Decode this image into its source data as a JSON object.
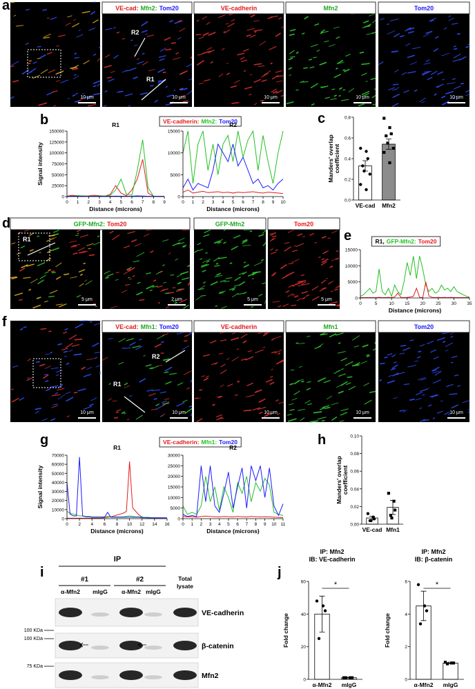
{
  "panel_labels": [
    "a",
    "b",
    "c",
    "d",
    "e",
    "f",
    "g",
    "h",
    "i",
    "j"
  ],
  "row_a": {
    "merge_header": [
      {
        "text": "VE-cad:",
        "color": "#e41a1c"
      },
      {
        "text": "Mfn2:",
        "color": "#1fa81f"
      },
      {
        "text": "Tom20",
        "color": "#1a1aff"
      }
    ],
    "headers": [
      {
        "text": "VE-cadherin",
        "color": "#e41a1c"
      },
      {
        "text": "Mfn2",
        "color": "#1fa81f"
      },
      {
        "text": "Tom20",
        "color": "#1a1aff"
      }
    ],
    "scales": [
      "10 μm",
      "10 μm",
      "10 μm",
      "10 μm",
      "10 μm"
    ],
    "regions": [
      "R2",
      "R1"
    ]
  },
  "row_d": {
    "merge_header": [
      {
        "text": "GFP-Mfn2:",
        "color": "#1fa81f"
      },
      {
        "text": "Tom20",
        "color": "#e41a1c"
      }
    ],
    "headers": [
      {
        "text": "GFP-Mfn2",
        "color": "#1fa81f"
      },
      {
        "text": "Tom20",
        "color": "#e41a1c"
      }
    ],
    "scales": [
      "5 μm",
      "2 μm",
      "5 μm",
      "5 μm"
    ],
    "regions": [
      "R1"
    ]
  },
  "row_f": {
    "merge_header": [
      {
        "text": "VE-cad:",
        "color": "#e41a1c"
      },
      {
        "text": "Mfn1:",
        "color": "#1fa81f"
      },
      {
        "text": "Tom20",
        "color": "#1a1aff"
      }
    ],
    "headers": [
      {
        "text": "VE-cadherin",
        "color": "#e41a1c"
      },
      {
        "text": "Mfn1",
        "color": "#1fa81f"
      },
      {
        "text": "Tom20",
        "color": "#1a1aff"
      }
    ],
    "scales": [
      "10 μm",
      "10 μm",
      "10 μm",
      "10 μm",
      "10 μm"
    ],
    "regions": [
      "R2",
      "R1"
    ]
  },
  "blot": {
    "ip": "IP",
    "groups": [
      "#1",
      "#2"
    ],
    "lanes": [
      "α-Mfn2",
      "mIgG",
      "α-Mfn2",
      "mIgG"
    ],
    "total": [
      "Total",
      "lysate"
    ],
    "bands": [
      "VE-cadherin",
      "β-catenin",
      "Mfn2"
    ],
    "markers": [
      "100 KDa",
      "100 KDa",
      "75 KDa"
    ]
  },
  "chart_data": [
    {
      "type": "line",
      "title": "R1",
      "xlabel": "Distance (microns)",
      "ylabel": [
        "Signal intensity"
      ],
      "x": [
        0,
        0.5,
        1,
        1.5,
        2,
        2.5,
        3,
        3.5,
        4,
        4.5,
        5,
        5.5,
        6,
        6.5,
        7,
        7.5,
        8,
        8.5,
        9
      ],
      "xlim": [
        0,
        9
      ],
      "xticks": [
        0,
        1,
        2,
        3,
        4,
        5,
        6,
        7,
        8,
        9
      ],
      "ylim": [
        0,
        150000
      ],
      "yticks": [
        0,
        25000,
        50000,
        75000,
        100000,
        125000,
        150000
      ],
      "series": [
        {
          "name": "VE-cadherin:",
          "color": "#e41a1c",
          "values": [
            1000,
            3000,
            2000,
            1000,
            1500,
            3000,
            2000,
            1000,
            5000,
            25000,
            8000,
            2000,
            15000,
            40000,
            85000,
            8000,
            1000,
            500,
            500
          ]
        },
        {
          "name": "Mfn2:",
          "color": "#22c022",
          "values": [
            500,
            1000,
            2000,
            1500,
            1000,
            1000,
            1500,
            1000,
            3000,
            15000,
            40000,
            5000,
            3000,
            60000,
            130000,
            20000,
            1000,
            500,
            500
          ]
        },
        {
          "name": "Tom20",
          "color": "#1a1aff",
          "values": [
            500,
            800,
            600,
            700,
            500,
            600,
            800,
            500,
            700,
            1000,
            800,
            600,
            700,
            1500,
            1200,
            600,
            500,
            400,
            400
          ]
        }
      ]
    },
    {
      "type": "line",
      "title": "R2",
      "xlabel": "Distance (microns)",
      "x": [
        0,
        0.5,
        1,
        1.5,
        2,
        2.5,
        3,
        3.5,
        4,
        4.5,
        5,
        5.5,
        6,
        6.5,
        7,
        7.5,
        8,
        8.5,
        9,
        9.5,
        10
      ],
      "xlim": [
        0,
        10
      ],
      "xticks": [
        0,
        1,
        2,
        3,
        4,
        5,
        6,
        7,
        8,
        9,
        10
      ],
      "ylim": [
        0,
        15000
      ],
      "yticks": [
        0,
        5000,
        10000,
        15000
      ],
      "series": [
        {
          "color": "#22c022",
          "values": [
            10000,
            15000,
            3000,
            12000,
            15000,
            6000,
            12000,
            5000,
            12000,
            14000,
            8000,
            15000,
            9000,
            13000,
            15000,
            6000,
            14000,
            8000,
            3000,
            10000,
            15000
          ]
        },
        {
          "color": "#1a1aff",
          "values": [
            2000,
            4000,
            1500,
            3000,
            2500,
            2000,
            6000,
            12000,
            10000,
            8000,
            12000,
            7000,
            9000,
            6000,
            3000,
            4000,
            2000,
            2500,
            1500,
            3000,
            4000
          ]
        },
        {
          "color": "#e41a1c",
          "values": [
            1000,
            1500,
            800,
            1000,
            1200,
            900,
            1000,
            1100,
            900,
            1000,
            800,
            1000,
            900,
            1000,
            1100,
            900,
            800,
            1000,
            900,
            800,
            700
          ]
        }
      ]
    },
    {
      "type": "bar",
      "ylabel": [
        "Manders' overlap",
        "coefficient"
      ],
      "categories": [
        "VE-cad",
        "Mfn2"
      ],
      "values": [
        0.33,
        0.54
      ],
      "errors": [
        0.05,
        0.05
      ],
      "points": [
        [
          0.5,
          0.47,
          0.4,
          0.33,
          0.28,
          0.25,
          0.15,
          0.1
        ],
        [
          0.79,
          0.7,
          0.64,
          0.62,
          0.55,
          0.5,
          0.46,
          0.36
        ]
      ],
      "colors": [
        "#ffffff",
        "#8c8c8c"
      ],
      "ylim": [
        0,
        0.8
      ],
      "yticks": [
        {
          "value": 0,
          "label": "0.0"
        },
        0.2,
        0.4,
        0.6,
        0.8
      ]
    },
    {
      "type": "line",
      "title": "R1,",
      "xlabel": "Distance (microns)",
      "ylabel": [
        "Signal intensity"
      ],
      "x": [
        0,
        1,
        2,
        3,
        4,
        5,
        6,
        7,
        8,
        9,
        10,
        11,
        12,
        13,
        14,
        15,
        16,
        17,
        18,
        19,
        20,
        21,
        22,
        23,
        24,
        25,
        26,
        27,
        28,
        29,
        30,
        31,
        32,
        33,
        34,
        35
      ],
      "xlim": [
        0,
        35
      ],
      "xticks": [
        0,
        5,
        10,
        15,
        20,
        25,
        30,
        35
      ],
      "ylim": [
        0,
        15000
      ],
      "yticks": [
        0,
        5000,
        10000,
        15000
      ],
      "series": [
        {
          "name": "GFP-Mfn2:",
          "color": "#22c022",
          "values": [
            500,
            1000,
            2000,
            3000,
            1500,
            2000,
            9000,
            2000,
            1000,
            3000,
            500,
            4000,
            2000,
            1000,
            5000,
            11000,
            7000,
            13000,
            6000,
            13000,
            9000,
            4000,
            2000,
            3000,
            1500,
            2000,
            4000,
            2500,
            3000,
            2000,
            3500,
            2000,
            1500,
            1000,
            500,
            300
          ]
        },
        {
          "name": "Tom20",
          "color": "#e41a1c",
          "values": [
            100,
            100,
            100,
            100,
            100,
            100,
            200,
            100,
            100,
            200,
            100,
            300,
            1500,
            200,
            100,
            200,
            300,
            500,
            3000,
            200,
            100,
            5000,
            600,
            200,
            100,
            200,
            100,
            200,
            100,
            200,
            100,
            100,
            100,
            100,
            100,
            100
          ]
        }
      ]
    },
    {
      "type": "line",
      "title": "R1",
      "xlabel": "Distance (microns)",
      "ylabel": [
        "Signal intensity"
      ],
      "x": [
        0,
        0.5,
        1,
        1.5,
        2,
        2.5,
        3,
        3.5,
        4,
        4.5,
        5,
        5.5,
        6,
        6.5,
        7,
        7.5,
        8,
        8.5,
        9,
        9.5,
        10,
        10.5,
        11,
        11.5,
        12,
        12.5,
        13,
        13.5,
        14,
        14.5,
        15,
        15.5,
        16
      ],
      "xlim": [
        0,
        16
      ],
      "xticks": [
        0,
        2,
        4,
        6,
        8,
        10,
        12,
        14,
        16
      ],
      "ylim": [
        0,
        70000
      ],
      "yticks": [
        0,
        10000,
        20000,
        30000,
        40000,
        50000,
        60000,
        70000
      ],
      "series": [
        {
          "name": "VE-cadherin:",
          "color": "#e41a1c",
          "values": [
            500,
            500,
            500,
            500,
            500,
            500,
            500,
            500,
            500,
            500,
            500,
            500,
            1000,
            1500,
            2000,
            3000,
            4000,
            5000,
            6000,
            8000,
            63000,
            12000,
            8000,
            4000,
            2000,
            1000,
            800,
            500,
            500,
            500,
            400,
            400,
            400
          ]
        },
        {
          "name": "Mfn1:",
          "color": "#22c022",
          "values": [
            8000,
            6000,
            5000,
            4000,
            3000,
            3000,
            2500,
            2500,
            2000,
            2000,
            2000,
            2000,
            2000,
            2500,
            2000,
            2000,
            2000,
            2000,
            2000,
            2500,
            3000,
            2500,
            2000,
            2000,
            1500,
            1500,
            1500,
            1000,
            1000,
            1000,
            1000,
            800,
            800
          ]
        },
        {
          "name": "Tom20",
          "color": "#1a1aff",
          "values": [
            40000,
            5000,
            3000,
            3000,
            68000,
            3000,
            2000,
            2000,
            1500,
            1500,
            1500,
            1500,
            1500,
            7000,
            1500,
            1500,
            1500,
            1500,
            1500,
            1500,
            1500,
            1500,
            1500,
            1500,
            1000,
            1000,
            1000,
            1000,
            1000,
            1000,
            1000,
            1000,
            1000
          ]
        }
      ]
    },
    {
      "type": "line",
      "title": "R2",
      "xlabel": "Distance (microns)",
      "x": [
        0,
        0.5,
        1,
        1.5,
        2,
        2.5,
        3,
        3.5,
        4,
        4.5,
        5,
        5.5,
        6,
        6.5,
        7,
        7.5,
        8,
        8.5,
        9,
        9.5,
        10,
        10.5,
        11
      ],
      "xlim": [
        0,
        11
      ],
      "xticks": [
        0,
        1,
        2,
        3,
        4,
        5,
        6,
        7,
        8,
        9,
        10,
        11
      ],
      "ylim": [
        0,
        30000
      ],
      "yticks": [
        0,
        5000,
        10000,
        15000,
        20000,
        25000,
        30000
      ],
      "series": [
        {
          "color": "#22c022",
          "values": [
            6000,
            2000,
            3000,
            2000,
            6000,
            20000,
            8000,
            15000,
            4000,
            15000,
            10000,
            3000,
            17000,
            12000,
            20000,
            8000,
            17000,
            13000,
            19000,
            16000,
            3000,
            2000,
            1500
          ]
        },
        {
          "color": "#1a1aff",
          "values": [
            2000,
            1000,
            1500,
            1000,
            25000,
            8000,
            25000,
            6000,
            3000,
            12000,
            22000,
            5000,
            15000,
            24000,
            5000,
            25000,
            18000,
            25000,
            10000,
            24000,
            6000,
            1500,
            7000
          ]
        },
        {
          "color": "#e41a1c",
          "values": [
            1000,
            800,
            900,
            700,
            1000,
            1200,
            1000,
            900,
            800,
            1000,
            900,
            800,
            1000,
            900,
            800,
            1000,
            900,
            800,
            900,
            800,
            700,
            600,
            500
          ]
        }
      ]
    },
    {
      "type": "bar",
      "ylabel": [
        "Manders' overlap",
        "coefficient"
      ],
      "categories": [
        "VE-cad",
        "Mfn1"
      ],
      "values": [
        0.007,
        0.019
      ],
      "errors": [
        0.002,
        0.008
      ],
      "points": [
        [
          0.012,
          0.008,
          0.006,
          0.004,
          0.004
        ],
        [
          0.035,
          0.026,
          0.016,
          0.01,
          0.007
        ]
      ],
      "colors": [
        "#ffffff",
        "#ffffff"
      ],
      "ylim": [
        0,
        0.1
      ],
      "yticks": [
        {
          "value": 0,
          "label": "0.00"
        },
        0.02,
        0.04,
        0.06,
        0.08,
        {
          "value": 0.1,
          "label": "0.10"
        }
      ]
    },
    {
      "type": "bar",
      "title": [
        "IP: Mfn2",
        "IB: VE-cadherin"
      ],
      "ylabel": [
        "Fold change"
      ],
      "categories": [
        "α-Mfn2",
        "mIgG"
      ],
      "values": [
        40,
        1
      ],
      "errors": [
        11,
        0.2
      ],
      "points": [
        [
          48,
          45,
          42,
          25
        ],
        [
          1,
          1,
          1,
          1
        ]
      ],
      "colors": [
        "#ffffff",
        "#ffffff"
      ],
      "ylim": [
        0,
        60
      ],
      "yticks": [
        0,
        20,
        40,
        60
      ],
      "significance": "*"
    },
    {
      "type": "bar",
      "title": [
        "IP: Mfn2",
        "IB: β-catenin"
      ],
      "ylabel": [
        "Fold change"
      ],
      "categories": [
        "α-Mfn2",
        "mIgG"
      ],
      "values": [
        4.5,
        1
      ],
      "errors": [
        0.9,
        0.05
      ],
      "points": [
        [
          5.8,
          4.5,
          4.2,
          3.4
        ],
        [
          1.05,
          1,
          1,
          0.95
        ]
      ],
      "colors": [
        "#ffffff",
        "#ffffff"
      ],
      "ylim": [
        0,
        6
      ],
      "yticks": [
        0,
        2,
        4,
        6
      ],
      "significance": "*"
    }
  ]
}
